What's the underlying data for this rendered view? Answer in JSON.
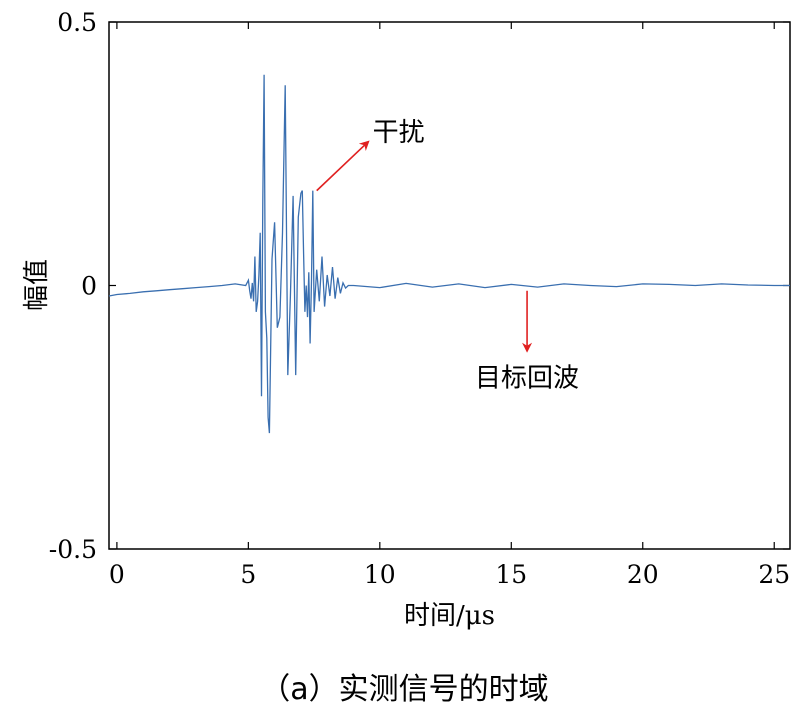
{
  "chart_data": {
    "type": "line",
    "title": "",
    "xlabel": "时间/μs",
    "ylabel": "幅值",
    "xlim": [
      -0.3,
      25.6
    ],
    "ylim": [
      -0.5,
      0.5
    ],
    "x_ticks": [
      0,
      5,
      10,
      15,
      20,
      25
    ],
    "x_tick_labels": [
      "0",
      "5",
      "10",
      "15",
      "20",
      "25"
    ],
    "y_ticks": [
      -0.5,
      0,
      0.5
    ],
    "y_tick_labels": [
      "-0.5",
      "0",
      "0.5"
    ],
    "grid": false,
    "series_color": "#3a6fb0",
    "series": [
      {
        "x": [
          -0.3,
          0,
          0.5,
          1,
          1.5,
          2,
          2.5,
          3,
          3.5,
          4,
          4.5,
          4.9,
          5.0,
          5.05,
          5.1,
          5.15,
          5.2,
          5.25,
          5.3,
          5.35,
          5.4,
          5.45,
          5.5,
          5.55,
          5.6,
          5.65,
          5.7,
          5.75,
          5.8,
          5.9,
          6.0,
          6.1,
          6.2,
          6.3,
          6.4,
          6.5,
          6.6,
          6.7,
          6.8,
          6.9,
          7.0,
          7.05,
          7.1,
          7.15,
          7.2,
          7.25,
          7.3,
          7.35,
          7.4,
          7.45,
          7.5,
          7.6,
          7.7,
          7.8,
          7.9,
          8.0,
          8.1,
          8.2,
          8.3,
          8.4,
          8.5,
          8.6,
          8.7,
          8.8,
          9.0,
          10,
          11,
          12,
          13,
          14,
          15,
          16,
          17,
          18,
          19,
          20,
          21,
          22,
          23,
          24,
          25,
          25.6
        ],
        "y": [
          -0.02,
          -0.017,
          -0.015,
          -0.012,
          -0.01,
          -0.008,
          -0.006,
          -0.004,
          -0.002,
          0,
          0.003,
          0,
          0.01,
          -0.01,
          -0.025,
          0.005,
          -0.03,
          0.055,
          -0.05,
          -0.03,
          0.02,
          0.1,
          -0.21,
          0.16,
          0.4,
          -0.05,
          -0.1,
          -0.25,
          -0.28,
          0.05,
          0.12,
          -0.08,
          -0.06,
          0.1,
          0.38,
          -0.17,
          -0.02,
          0.17,
          -0.17,
          0.13,
          0.175,
          0.18,
          0.06,
          -0.05,
          0.0,
          -0.06,
          0.025,
          -0.11,
          0.01,
          0.18,
          -0.05,
          0.03,
          -0.03,
          0.055,
          -0.04,
          0.02,
          -0.02,
          0.035,
          -0.025,
          0.015,
          -0.015,
          0.005,
          -0.005,
          0.0,
          0.0,
          -0.004,
          0.004,
          -0.003,
          0.003,
          -0.004,
          0.002,
          -0.003,
          0.003,
          0.0,
          -0.002,
          0.003,
          0.002,
          0.0,
          0.003,
          0.001,
          0.0,
          0.0
        ]
      }
    ],
    "annotations": [
      {
        "label": "干扰",
        "type": "arrow",
        "from": [
          7.6,
          0.18
        ],
        "to": [
          9.5,
          0.27
        ]
      },
      {
        "label": "目标回波",
        "type": "arrow",
        "from": [
          15.6,
          -0.01
        ],
        "to": [
          15.6,
          -0.12
        ]
      }
    ],
    "annotation_color": "#e02020"
  },
  "caption": "（a）实测信号的时域"
}
